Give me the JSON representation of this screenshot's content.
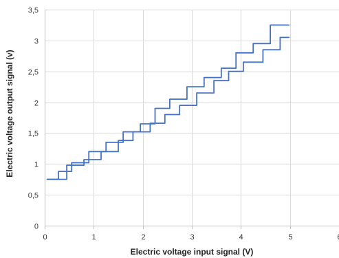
{
  "chart_data": {
    "type": "line",
    "title": "",
    "xlabel": "Electric voltage input signal (V)",
    "ylabel": "Electric voltage output signal (v)",
    "xlim": [
      0,
      6
    ],
    "ylim": [
      0,
      3.5
    ],
    "x_ticks": [
      0,
      1,
      2,
      3,
      4,
      5,
      6
    ],
    "x_tick_labels": [
      "0",
      "1",
      "2",
      "3",
      "4",
      "5",
      "6"
    ],
    "y_ticks": [
      0,
      0.5,
      1,
      1.5,
      2,
      2.5,
      3,
      3.5
    ],
    "y_tick_labels": [
      "0",
      "0,5",
      "1",
      "1,5",
      "2",
      "2,5",
      "3",
      "3,5"
    ],
    "grid": true,
    "legend": "none",
    "line_color": "#4472c4",
    "series": [
      {
        "x": [
          0.05,
          0.45,
          0.45,
          0.8,
          0.8,
          1.15,
          1.15,
          1.5,
          1.5,
          1.8,
          1.8,
          2.15,
          2.15,
          2.45,
          2.45,
          2.75,
          2.75,
          3.1,
          3.1,
          3.45,
          3.45,
          3.75,
          3.75,
          4.05,
          4.05,
          4.45,
          4.45,
          4.8,
          4.8,
          4.98
        ],
        "y": [
          0.75,
          0.75,
          0.98,
          0.98,
          1.07,
          1.07,
          1.2,
          1.2,
          1.38,
          1.38,
          1.52,
          1.52,
          1.66,
          1.66,
          1.8,
          1.8,
          1.95,
          1.95,
          2.15,
          2.15,
          2.35,
          2.35,
          2.5,
          2.5,
          2.65,
          2.65,
          2.85,
          2.85,
          3.05,
          3.05
        ]
      },
      {
        "x": [
          0.05,
          0.28,
          0.28,
          0.55,
          0.55,
          0.9,
          0.9,
          1.25,
          1.25,
          1.6,
          1.6,
          1.95,
          1.95,
          2.25,
          2.25,
          2.55,
          2.55,
          2.9,
          2.9,
          3.25,
          3.25,
          3.6,
          3.6,
          3.9,
          3.9,
          4.25,
          4.25,
          4.6,
          4.6,
          4.98
        ],
        "y": [
          0.75,
          0.75,
          0.88,
          0.88,
          1.02,
          1.02,
          1.2,
          1.2,
          1.35,
          1.35,
          1.52,
          1.52,
          1.65,
          1.65,
          1.9,
          1.9,
          2.05,
          2.05,
          2.25,
          2.25,
          2.4,
          2.4,
          2.55,
          2.55,
          2.8,
          2.8,
          2.95,
          2.95,
          3.25,
          3.25
        ]
      }
    ]
  }
}
